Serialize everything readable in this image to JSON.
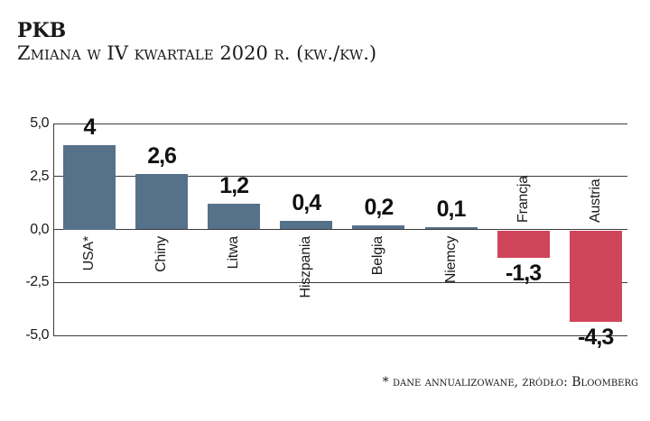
{
  "header": {
    "title": "PKB",
    "subtitle": "Zmiana w IV kwartale 2020 r. (kw./kw.)"
  },
  "footer": {
    "source_note": "* dane annualizowane, źródło: Bloomberg"
  },
  "colors": {
    "positive_bar": "#56718A",
    "negative_bar": "#CF455A",
    "axis": "#3C3C3C",
    "text": "#1A1A1A",
    "background": "#FFFFFF"
  },
  "chart_data": {
    "type": "bar",
    "title": "PKB",
    "subtitle": "Zmiana w IV kwartale 2020 r. (kw./kw.)",
    "categories": [
      "USA*",
      "Chiny",
      "Litwa",
      "Hiszpania",
      "Belgia",
      "Niemcy",
      "Francja",
      "Austria"
    ],
    "values": [
      4,
      2.6,
      1.2,
      0.4,
      0.2,
      0.1,
      -1.3,
      -4.3
    ],
    "value_labels": [
      "4",
      "2,6",
      "1,2",
      "0,4",
      "0,2",
      "0,1",
      "-1,3",
      "-4,3"
    ],
    "ylim": [
      -5.0,
      5.0
    ],
    "yticks": [
      5.0,
      2.5,
      0.0,
      -2.5,
      -5.0
    ],
    "ytick_labels": [
      "5,0",
      "2,5",
      "0,0",
      "-2,5",
      "-5,0"
    ],
    "grid": true,
    "legend": false,
    "positive_color": "#56718A",
    "negative_color": "#CF455A",
    "footnote": "* dane annualizowane, źródło: Bloomberg"
  }
}
